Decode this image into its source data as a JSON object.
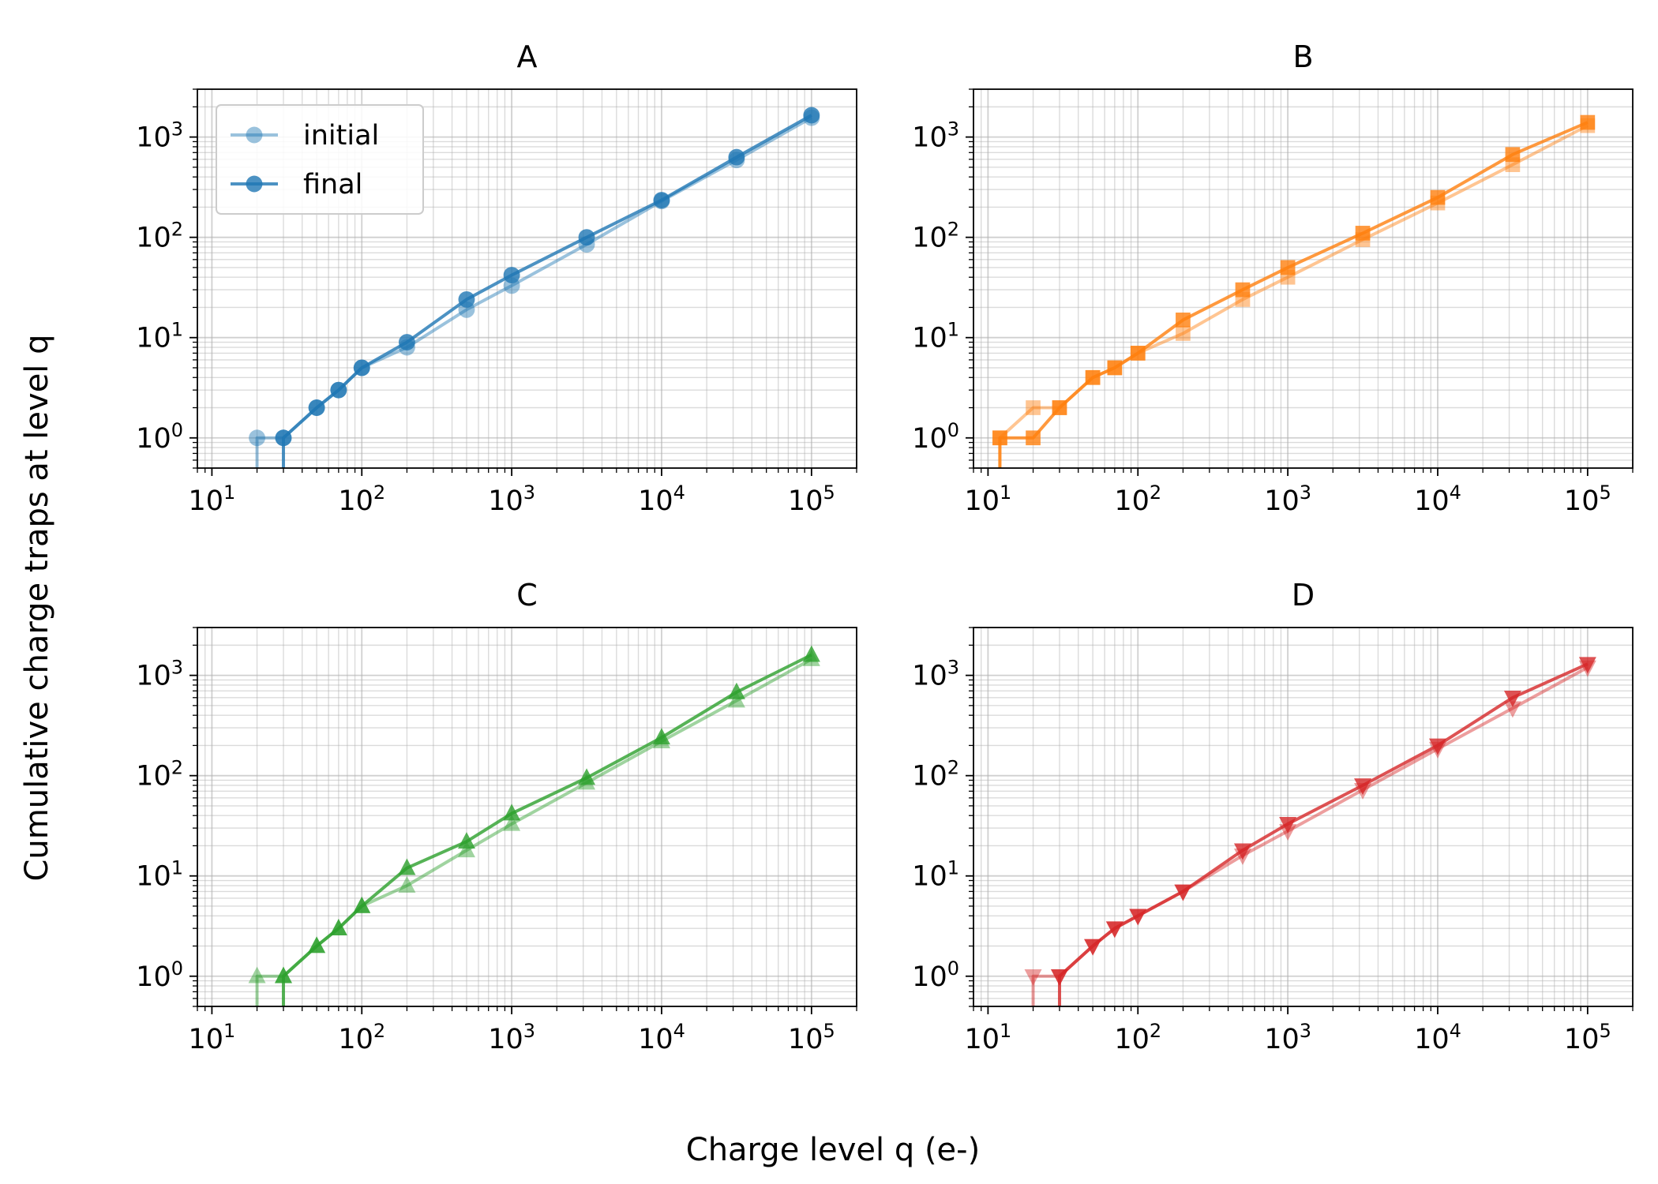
{
  "figure": {
    "ylabel": "Cumulative charge traps at level q",
    "xlabel": "Charge level q (e-)"
  },
  "legend": {
    "initial": "initial",
    "final": "final"
  },
  "chart_data": [
    {
      "type": "line",
      "title": "A",
      "xscale": "log",
      "yscale": "log",
      "xlim": [
        8,
        200000
      ],
      "ylim": [
        0.5,
        3000
      ],
      "grid": true,
      "color": "#1f77b4",
      "marker": "circle",
      "legend": "top-left",
      "x_tick_labels": [
        "10^1",
        "10^2",
        "10^3",
        "10^4",
        "10^5"
      ],
      "y_tick_labels": [
        "10^0",
        "10^1",
        "10^2",
        "10^3"
      ],
      "series": [
        {
          "name": "initial",
          "x": [
            20,
            30,
            50,
            70,
            100,
            200,
            500,
            1000,
            3162,
            10000,
            31623,
            100000
          ],
          "y": [
            1,
            1,
            2,
            3,
            5,
            8,
            19,
            33,
            85,
            230,
            590,
            1560
          ]
        },
        {
          "name": "final",
          "x": [
            30,
            50,
            70,
            100,
            200,
            500,
            1000,
            3162,
            10000,
            31623,
            100000
          ],
          "y": [
            1,
            2,
            3,
            5,
            9,
            24,
            42,
            100,
            235,
            630,
            1650
          ]
        }
      ]
    },
    {
      "type": "line",
      "title": "B",
      "xscale": "log",
      "yscale": "log",
      "xlim": [
        8,
        200000
      ],
      "ylim": [
        0.5,
        3000
      ],
      "grid": true,
      "color": "#ff7f0e",
      "marker": "square",
      "x_tick_labels": [
        "10^1",
        "10^2",
        "10^3",
        "10^4",
        "10^5"
      ],
      "y_tick_labels": [
        "10^0",
        "10^1",
        "10^2",
        "10^3"
      ],
      "series": [
        {
          "name": "initial",
          "x": [
            12,
            20,
            30,
            50,
            70,
            100,
            200,
            500,
            1000,
            3162,
            10000,
            31623,
            100000
          ],
          "y": [
            1,
            2,
            2,
            4,
            5,
            7,
            11,
            24,
            40,
            95,
            220,
            530,
            1300
          ]
        },
        {
          "name": "final",
          "x": [
            12,
            20,
            30,
            50,
            70,
            100,
            200,
            500,
            1000,
            3162,
            10000,
            31623,
            100000
          ],
          "y": [
            1,
            1,
            2,
            4,
            5,
            7,
            15,
            30,
            50,
            110,
            250,
            670,
            1400
          ]
        }
      ]
    },
    {
      "type": "line",
      "title": "C",
      "xscale": "log",
      "yscale": "log",
      "xlim": [
        8,
        200000
      ],
      "ylim": [
        0.5,
        3000
      ],
      "grid": true,
      "color": "#2ca02c",
      "marker": "triangle-up",
      "x_tick_labels": [
        "10^1",
        "10^2",
        "10^3",
        "10^4",
        "10^5"
      ],
      "y_tick_labels": [
        "10^0",
        "10^1",
        "10^2",
        "10^3"
      ],
      "series": [
        {
          "name": "initial",
          "x": [
            20,
            30,
            50,
            70,
            100,
            200,
            500,
            1000,
            3162,
            10000,
            31623,
            100000
          ],
          "y": [
            1,
            1,
            2,
            3,
            5,
            8,
            18,
            33,
            85,
            220,
            560,
            1450
          ]
        },
        {
          "name": "final",
          "x": [
            30,
            50,
            70,
            100,
            200,
            500,
            1000,
            3162,
            10000,
            31623,
            100000
          ],
          "y": [
            1,
            2,
            3,
            5,
            12,
            22,
            42,
            95,
            240,
            680,
            1600
          ]
        }
      ]
    },
    {
      "type": "line",
      "title": "D",
      "xscale": "log",
      "yscale": "log",
      "xlim": [
        8,
        200000
      ],
      "ylim": [
        0.5,
        3000
      ],
      "grid": true,
      "color": "#d62728",
      "marker": "triangle-down",
      "x_tick_labels": [
        "10^1",
        "10^2",
        "10^3",
        "10^4",
        "10^5"
      ],
      "y_tick_labels": [
        "10^0",
        "10^1",
        "10^2",
        "10^3"
      ],
      "series": [
        {
          "name": "initial",
          "x": [
            20,
            30,
            50,
            70,
            100,
            200,
            500,
            1000,
            3162,
            10000,
            31623,
            100000
          ],
          "y": [
            1,
            1,
            2,
            3,
            4,
            7,
            16,
            28,
            72,
            185,
            470,
            1200
          ]
        },
        {
          "name": "final",
          "x": [
            30,
            50,
            70,
            100,
            200,
            500,
            1000,
            3162,
            10000,
            31623,
            100000
          ],
          "y": [
            1,
            2,
            3,
            4,
            7,
            18,
            33,
            80,
            200,
            600,
            1300
          ]
        }
      ]
    }
  ]
}
